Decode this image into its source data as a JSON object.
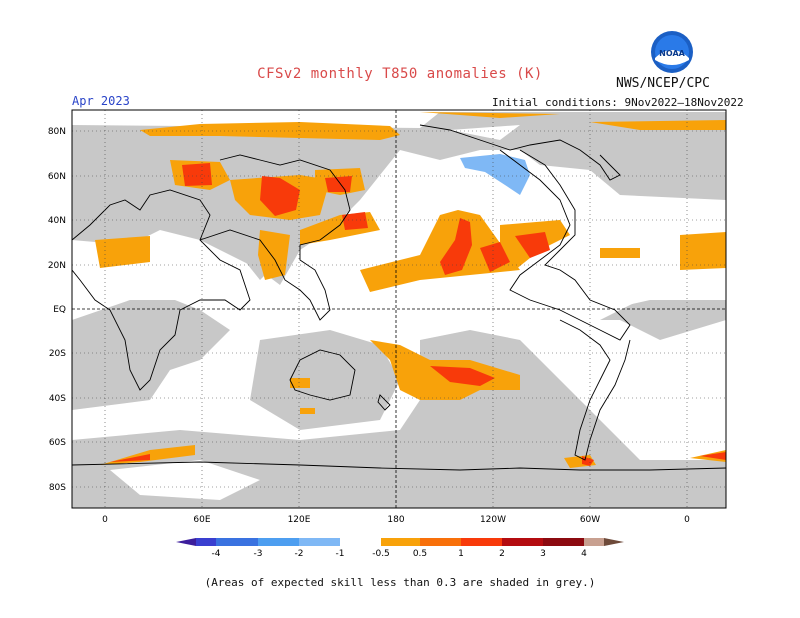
{
  "header": {
    "title": "CFSv2 monthly T850 anomalies (K)",
    "agency": "NWS/NCEP/CPC",
    "valid_month": "Apr 2023",
    "initial_conditions": "Initial conditions: 9Nov2022–18Nov2022",
    "logo_text": "NOAA"
  },
  "map": {
    "lat_labels": [
      "80N",
      "60N",
      "40N",
      "20N",
      "EQ",
      "20S",
      "40S",
      "60S",
      "80S"
    ],
    "lon_labels": [
      "0",
      "60E",
      "120E",
      "180",
      "120W",
      "60W",
      "0"
    ]
  },
  "colorbar": {
    "labels": [
      "-4",
      "-3",
      "-2",
      "-1",
      "-0.5",
      "0.5",
      "1",
      "2",
      "3",
      "4"
    ],
    "colors": [
      "#3c1e9c",
      "#3a3fd0",
      "#3a72e0",
      "#4d9ef0",
      "#7fb8f5",
      "#ffffff",
      "#f8a20a",
      "#f8700a",
      "#f83a0a",
      "#b40c10",
      "#8c0a10",
      "#c8a090",
      "#6e4a3a"
    ]
  },
  "footnote": "(Areas of expected skill less than 0.3 are shaded in grey.)"
}
